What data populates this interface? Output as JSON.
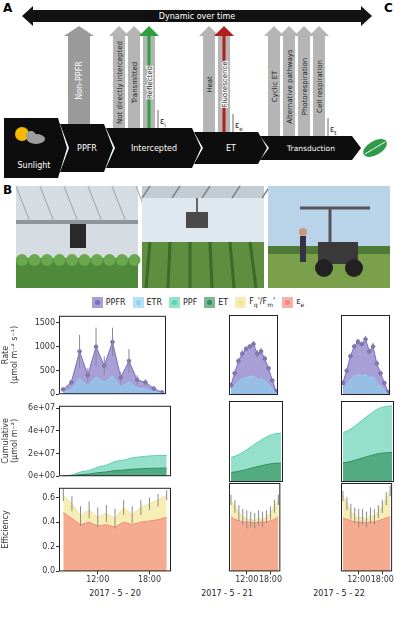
{
  "panel_labels": {
    "diagram": "A",
    "photos": "B",
    "chart": "C"
  },
  "diagram": {
    "timeline": "Dynamic over time",
    "stages": [
      {
        "label": "Sunlight"
      },
      {
        "label": "PPFR",
        "losses": [
          {
            "label": "Non-PPFR"
          }
        ]
      },
      {
        "label": "Intercepted",
        "losses": [
          {
            "label": "Not directly intercepted"
          },
          {
            "label": "Transmitted"
          },
          {
            "label": "Reflected",
            "color": "#2e9e3e"
          }
        ],
        "efficiency": "εi"
      },
      {
        "label": "ET",
        "losses": [
          {
            "label": "Heat"
          },
          {
            "label": "Fluorescence",
            "color": "#b3201c"
          }
        ],
        "efficiency": "εe"
      },
      {
        "label": "Transduction",
        "losses": [
          {
            "label": "Cyclic ET"
          },
          {
            "label": "Alternative pathways"
          },
          {
            "label": "Photorespiration"
          },
          {
            "label": "Cell respiration"
          }
        ],
        "efficiency": "εt"
      }
    ]
  },
  "facet_labels": [
    "2017 - 5 - 20",
    "2017 - 5 - 21",
    "2017 - 5 - 22"
  ],
  "chart_data": [
    {
      "type": "area",
      "ylabel": [
        "Rate",
        "(µmol m⁻² s⁻¹)"
      ],
      "legend": "top",
      "grid": false,
      "tick_labels": "y",
      "xlim": [
        7.5,
        20.5
      ],
      "xticks": [
        {
          "value": 12,
          "label": "12:00"
        },
        {
          "value": 18,
          "label": "18:00"
        }
      ],
      "ylim": [
        0,
        1650
      ],
      "yticks": [
        0,
        500,
        1000,
        1500
      ],
      "panels": [
        {
          "x": [
            8,
            9,
            10,
            11,
            12,
            13,
            14,
            15,
            16,
            17,
            18,
            19,
            20
          ],
          "series": [
            {
              "name": "PPFR",
              "color": "#7a6cc0",
              "marker": "circle",
              "values": [
                100,
                250,
                900,
                400,
                1000,
                600,
                1100,
                350,
                700,
                300,
                250,
                120,
                40
              ],
              "errors": [
                30,
                60,
                350,
                150,
                400,
                200,
                300,
                120,
                250,
                100,
                60,
                30,
                15
              ]
            },
            {
              "name": "ETR",
              "color": "#8fd0f0",
              "marker": "none",
              "values": [
                40,
                100,
                330,
                180,
                360,
                250,
                380,
                150,
                260,
                130,
                110,
                55,
                20
              ]
            }
          ]
        },
        {
          "x": [
            8,
            9,
            10,
            11,
            12,
            13,
            14,
            15,
            16,
            17,
            18,
            19,
            20
          ],
          "series": [
            {
              "name": "PPFR",
              "color": "#7a6cc0",
              "marker": "circle",
              "values": [
                200,
                450,
                700,
                850,
                950,
                1000,
                1050,
                850,
                900,
                750,
                550,
                300,
                80
              ],
              "errors": [
                20,
                40,
                60,
                80,
                60,
                50,
                60,
                80,
                70,
                60,
                40,
                30,
                10
              ]
            },
            {
              "name": "ETR",
              "color": "#8fd0f0",
              "marker": "none",
              "values": [
                80,
                180,
                280,
                330,
                360,
                380,
                390,
                320,
                340,
                290,
                220,
                120,
                35
              ]
            }
          ]
        },
        {
          "x": [
            8,
            9,
            10,
            11,
            12,
            13,
            14,
            15,
            16,
            17,
            18,
            19,
            20
          ],
          "series": [
            {
              "name": "PPFR",
              "color": "#7a6cc0",
              "marker": "circle",
              "values": [
                250,
                500,
                800,
                1000,
                1100,
                1050,
                1150,
                900,
                1000,
                650,
                450,
                250,
                60
              ],
              "errors": [
                20,
                40,
                50,
                60,
                60,
                50,
                70,
                60,
                80,
                60,
                40,
                30,
                10
              ]
            },
            {
              "name": "ETR",
              "color": "#8fd0f0",
              "marker": "none",
              "values": [
                100,
                200,
                320,
                390,
                420,
                400,
                430,
                350,
                380,
                260,
                180,
                100,
                25
              ]
            }
          ]
        }
      ]
    },
    {
      "type": "area",
      "ylabel": [
        "Cumulative",
        "(µmol m⁻²)"
      ],
      "grid": false,
      "tick_labels": "y",
      "xlim": [
        7.5,
        20.5
      ],
      "xticks": [
        {
          "value": 12,
          "label": "12:00"
        },
        {
          "value": 18,
          "label": "18:00"
        }
      ],
      "ylim": [
        0,
        62000000
      ],
      "yticks": [
        {
          "value": 0,
          "label": "0e+00"
        },
        {
          "value": 20000000,
          "label": "2e+07"
        },
        {
          "value": 40000000,
          "label": "4e+07"
        },
        {
          "value": 60000000,
          "label": "6e+07"
        }
      ],
      "panels": [
        {
          "x": [
            8,
            9,
            10,
            11,
            12,
            13,
            14,
            15,
            16,
            17,
            18,
            19,
            20
          ],
          "series": [
            {
              "name": "PPF",
              "color": "#5ccfae",
              "marker": "none",
              "values": [
                300000,
                1050000,
                3750000,
                4950000,
                7950000,
                9750000,
                13050000,
                14100000,
                16200000,
                17100000,
                17850000,
                18200000,
                18300000
              ]
            },
            {
              "name": "ET",
              "color": "#2f8f5b",
              "marker": "none",
              "values": [
                120000,
                420000,
                1410000,
                1950000,
                3030000,
                3780000,
                4920000,
                5370000,
                6150000,
                6540000,
                6870000,
                7040000,
                7100000
              ]
            }
          ]
        },
        {
          "x": [
            8,
            9,
            10,
            11,
            12,
            13,
            14,
            15,
            16,
            17,
            18,
            19,
            20
          ],
          "series": [
            {
              "name": "PPF",
              "color": "#5ccfae",
              "marker": "none",
              "values": [
                18700000,
                19700000,
                21200000,
                23100000,
                25200000,
                27400000,
                29700000,
                31600000,
                33600000,
                35200000,
                36400000,
                37100000,
                37300000
              ]
            },
            {
              "name": "ET",
              "color": "#2f8f5b",
              "marker": "none",
              "values": [
                7280000,
                7670000,
                8290000,
                9010000,
                9800000,
                10640000,
                11500000,
                12200000,
                12950000,
                13590000,
                14070000,
                14340000,
                14420000
              ]
            }
          ]
        },
        {
          "x": [
            8,
            9,
            10,
            11,
            12,
            13,
            14,
            15,
            16,
            17,
            18,
            19,
            20
          ],
          "series": [
            {
              "name": "PPF",
              "color": "#5ccfae",
              "marker": "none",
              "values": [
                37900000,
                39000000,
                40800000,
                43100000,
                45600000,
                48000000,
                50600000,
                52700000,
                55000000,
                56500000,
                57500000,
                58100000,
                58200000
              ]
            },
            {
              "name": "ET",
              "color": "#2f8f5b",
              "marker": "none",
              "values": [
                14650000,
                15100000,
                15830000,
                16720000,
                17680000,
                18590000,
                19570000,
                20370000,
                21240000,
                21830000,
                22240000,
                22470000,
                22520000
              ]
            }
          ]
        }
      ]
    },
    {
      "type": "area",
      "ylabel": [
        "Efficiency"
      ],
      "grid": false,
      "xlim": [
        7.5,
        20.5
      ],
      "xticks": [
        {
          "value": 12,
          "label": "12:00"
        },
        {
          "value": 18,
          "label": "18:00"
        }
      ],
      "ylim": [
        0,
        0.68
      ],
      "yticks": [
        {
          "value": 0,
          "label": "0.0"
        },
        0.2,
        0.4,
        0.6
      ],
      "panels": [
        {
          "x": [
            8,
            9,
            10,
            11,
            12,
            13,
            14,
            15,
            16,
            17,
            18,
            19,
            20
          ],
          "series": [
            {
              "name": "Fq'/Fm'",
              "color": "#f2e58f",
              "marker": "none",
              "values": [
                0.62,
                0.55,
                0.45,
                0.5,
                0.44,
                0.47,
                0.43,
                0.52,
                0.46,
                0.52,
                0.55,
                0.58,
                0.62
              ],
              "errors": [
                0.05,
                0.06,
                0.08,
                0.07,
                0.08,
                0.07,
                0.08,
                0.06,
                0.07,
                0.06,
                0.05,
                0.05,
                0.04
              ]
            },
            {
              "name": "εe",
              "color": "#f4877c",
              "marker": "none",
              "values": [
                0.48,
                0.43,
                0.38,
                0.4,
                0.37,
                0.38,
                0.36,
                0.4,
                0.38,
                0.4,
                0.41,
                0.42,
                0.44
              ]
            }
          ]
        },
        {
          "x": [
            8,
            9,
            10,
            11,
            12,
            13,
            14,
            15,
            16,
            17,
            18,
            19,
            20
          ],
          "series": [
            {
              "name": "Fq'/Fm'",
              "color": "#f2e58f",
              "marker": "none",
              "values": [
                0.55,
                0.5,
                0.45,
                0.42,
                0.4,
                0.4,
                0.39,
                0.41,
                0.4,
                0.42,
                0.45,
                0.5,
                0.55
              ],
              "errors": [
                0.04,
                0.05,
                0.06,
                0.06,
                0.07,
                0.06,
                0.06,
                0.06,
                0.06,
                0.05,
                0.05,
                0.05,
                0.04
              ]
            },
            {
              "name": "εe",
              "color": "#f4877c",
              "marker": "none",
              "values": [
                0.42,
                0.4,
                0.39,
                0.38,
                0.38,
                0.38,
                0.37,
                0.38,
                0.38,
                0.38,
                0.39,
                0.4,
                0.42
              ]
            }
          ]
        },
        {
          "x": [
            8,
            9,
            10,
            11,
            12,
            13,
            14,
            15,
            16,
            17,
            18,
            19,
            20
          ],
          "series": [
            {
              "name": "Fq'/Fm'",
              "color": "#f2e58f",
              "marker": "none",
              "values": [
                0.58,
                0.52,
                0.46,
                0.43,
                0.41,
                0.42,
                0.4,
                0.43,
                0.42,
                0.46,
                0.5,
                0.56,
                0.62
              ],
              "errors": [
                0.04,
                0.05,
                0.06,
                0.06,
                0.07,
                0.06,
                0.06,
                0.06,
                0.06,
                0.05,
                0.05,
                0.05,
                0.04
              ]
            },
            {
              "name": "εe",
              "color": "#f4877c",
              "marker": "none",
              "values": [
                0.41,
                0.4,
                0.39,
                0.38,
                0.38,
                0.38,
                0.37,
                0.38,
                0.38,
                0.39,
                0.4,
                0.41,
                0.42
              ]
            }
          ]
        }
      ]
    }
  ]
}
